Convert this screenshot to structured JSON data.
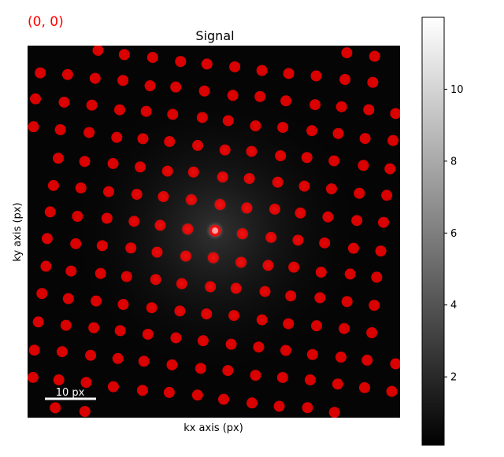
{
  "coordinate_readout": "(0, 0)",
  "chart_data": {
    "type": "heatmap",
    "title": "Signal",
    "xlabel": "kx axis (px)",
    "ylabel": "ky axis (px)",
    "scalebar_label": "10 px",
    "colormap": "gray",
    "colorbar": {
      "ticks": [
        2,
        4,
        6,
        8,
        10
      ],
      "range": [
        0.1,
        12
      ]
    },
    "marker_color": "#ff0000",
    "central_spot": {
      "kx": 0,
      "ky": 0,
      "intensity": 12
    },
    "lattice_basis_px": {
      "a": [
        8.6,
        1.0
      ],
      "b": [
        -1.0,
        8.6
      ]
    },
    "detected_spots_count": 210
  }
}
